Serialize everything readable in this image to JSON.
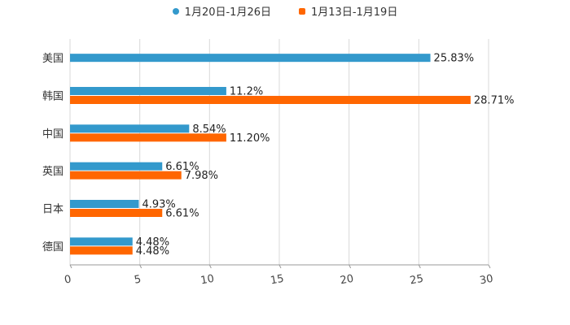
{
  "chart_data": {
    "type": "bar",
    "orientation": "horizontal",
    "categories": [
      "美国",
      "韩国",
      "中国",
      "英国",
      "日本",
      "德国"
    ],
    "series": [
      {
        "name": "1月20日-1月26日",
        "color": "#3399cc",
        "values": [
          25.83,
          11.2,
          8.54,
          6.61,
          4.93,
          4.48
        ],
        "labels": [
          "25.83%",
          "11.2%",
          "8.54%",
          "6.61%",
          "4.93%",
          "4.48%"
        ]
      },
      {
        "name": "1月13日-1月19日",
        "color": "#ff6600",
        "values": [
          null,
          28.71,
          11.2,
          7.98,
          6.61,
          4.48
        ],
        "labels": [
          "",
          "28.71%",
          "11.20%",
          "7.98%",
          "6.61%",
          "4.48%"
        ]
      }
    ],
    "xlim": [
      0,
      30
    ],
    "xticks": [
      "0",
      "5",
      "10",
      "15",
      "20",
      "25",
      "30"
    ],
    "grid": true,
    "legend_position": "top-center"
  }
}
